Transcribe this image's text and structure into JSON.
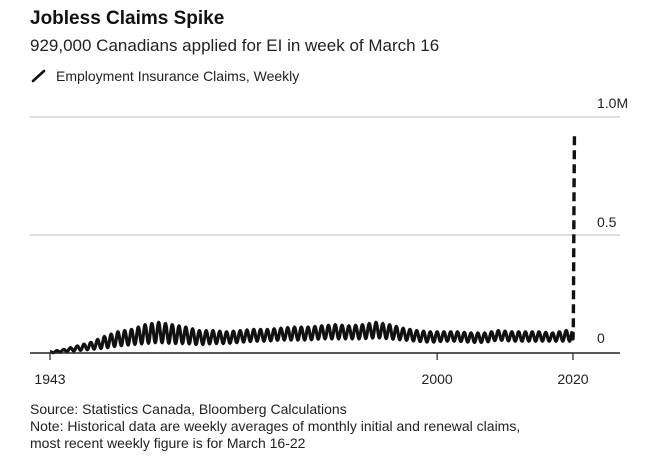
{
  "header": {
    "title": "Jobless Claims Spike",
    "subtitle": "929,000 Canadians applied for EI in week of March 16"
  },
  "legend": {
    "label": "Employment Insurance Claims, Weekly",
    "icon": "line-series-icon"
  },
  "footer": {
    "source": "Source: Statistics Canada, Bloomberg Calculations",
    "note_line1": "Note: Historical data are weekly averages of monthly initial and renewal claims,",
    "note_line2": "most recent weekly figure is for March 16-22"
  },
  "colors": {
    "line": "#111111",
    "grid": "#bbbbbb",
    "axis": "#222222",
    "background": "#ffffff"
  },
  "chart_data": {
    "type": "line",
    "title": "Jobless Claims Spike",
    "subtitle": "929,000 Canadians applied for EI in week of March 16",
    "xlabel": "",
    "ylabel": "",
    "xlim": [
      1943,
      2020.3
    ],
    "ylim": [
      0,
      1.0
    ],
    "x_ticks": [
      {
        "value": 1943,
        "label": "1943"
      },
      {
        "value": 2000,
        "label": "2000"
      },
      {
        "value": 2020,
        "label": "2020"
      }
    ],
    "y_ticks": [
      {
        "value": 1.0,
        "label": "1.0M"
      },
      {
        "value": 0.5,
        "label": "0.5"
      },
      {
        "value": 0,
        "label": "0"
      }
    ],
    "grid": "horizontal",
    "legend_position": "top-left",
    "series": [
      {
        "name": "Employment Insurance Claims, Weekly",
        "style": "solid",
        "oscillation": "seasonal",
        "x": [
          1943,
          1945,
          1947,
          1949,
          1951,
          1953,
          1955,
          1957,
          1959,
          1961,
          1963,
          1965,
          1967,
          1969,
          1971,
          1973,
          1975,
          1977,
          1979,
          1981,
          1983,
          1985,
          1987,
          1989,
          1991,
          1993,
          1995,
          1997,
          1999,
          2001,
          2003,
          2005,
          2007,
          2009,
          2011,
          2013,
          2015,
          2017,
          2019.9
        ],
        "low": [
          0.0,
          0.005,
          0.01,
          0.015,
          0.02,
          0.03,
          0.035,
          0.04,
          0.045,
          0.04,
          0.04,
          0.035,
          0.04,
          0.04,
          0.045,
          0.05,
          0.05,
          0.055,
          0.055,
          0.055,
          0.06,
          0.06,
          0.06,
          0.06,
          0.065,
          0.06,
          0.055,
          0.05,
          0.045,
          0.05,
          0.05,
          0.045,
          0.045,
          0.055,
          0.05,
          0.05,
          0.05,
          0.05,
          0.05
        ],
        "high": [
          0.005,
          0.015,
          0.03,
          0.045,
          0.07,
          0.09,
          0.1,
          0.12,
          0.13,
          0.12,
          0.11,
          0.095,
          0.095,
          0.09,
          0.095,
          0.1,
          0.1,
          0.105,
          0.11,
          0.11,
          0.115,
          0.12,
          0.115,
          0.12,
          0.13,
          0.12,
          0.105,
          0.095,
          0.09,
          0.09,
          0.09,
          0.085,
          0.085,
          0.095,
          0.09,
          0.09,
          0.09,
          0.085,
          0.1
        ]
      },
      {
        "name": "Employment Insurance Claims, Weekly (most recent)",
        "style": "dashed",
        "x": [
          2019.95,
          2020.0,
          2020.05,
          2020.1,
          2020.15,
          2020.22
        ],
        "y": [
          0.07,
          0.06,
          0.1,
          0.35,
          0.65,
          0.929
        ]
      }
    ]
  }
}
